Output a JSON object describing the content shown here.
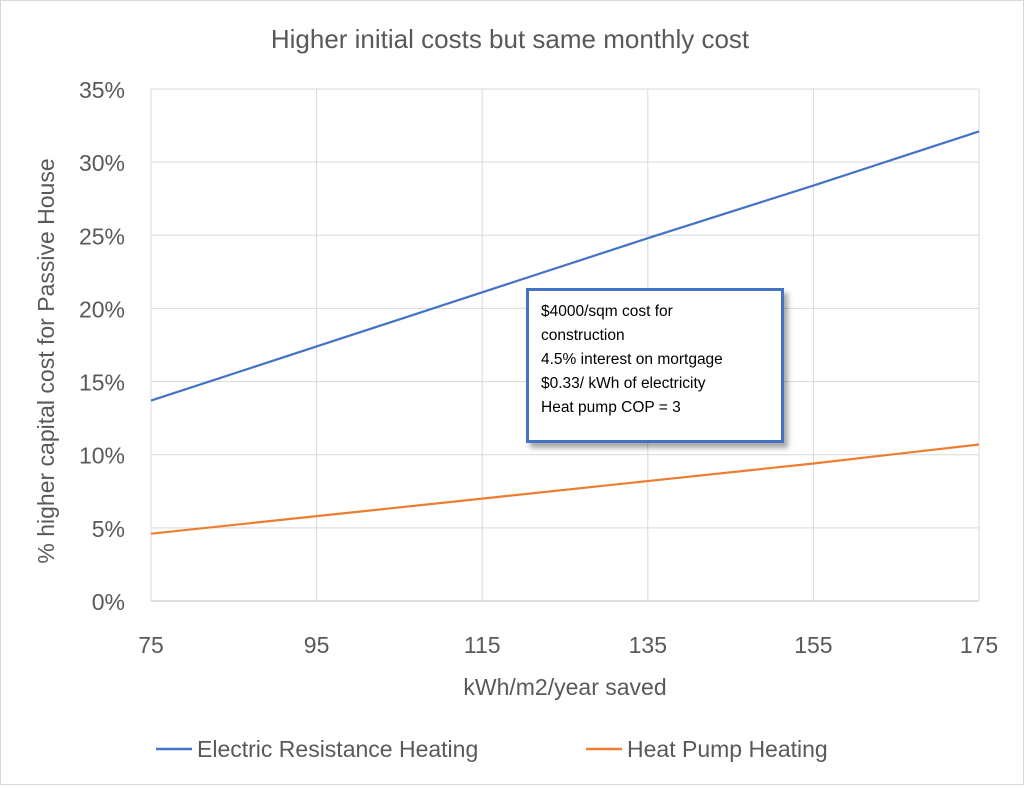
{
  "chart_data": {
    "type": "line",
    "title": "Higher initial costs but same monthly cost",
    "xlabel": "kWh/m2/year saved",
    "ylabel": "% higher capital cost for Passive House",
    "x_ticks": [
      "75",
      "95",
      "115",
      "135",
      "155",
      "175"
    ],
    "x_values": [
      75,
      95,
      115,
      135,
      155,
      175
    ],
    "y_ticks": [
      "0%",
      "5%",
      "10%",
      "15%",
      "20%",
      "25%",
      "30%",
      "35%"
    ],
    "xlim": [
      75,
      175
    ],
    "ylim": [
      0,
      35
    ],
    "grid": true,
    "legend_position": "bottom",
    "series": [
      {
        "name": "Electric Resistance Heating",
        "color": "#4472c4",
        "values": [
          13.7,
          17.4,
          21.1,
          24.8,
          28.4,
          32.1
        ]
      },
      {
        "name": "Heat Pump Heating",
        "color": "#ed7d31",
        "values": [
          4.6,
          5.8,
          7.0,
          8.2,
          9.4,
          10.7
        ]
      }
    ],
    "annotation": {
      "lines": [
        "$4000/sqm cost for",
        "construction",
        "4.5% interest on mortgage",
        "$0.33/ kWh of electricity",
        "Heat pump COP = 3"
      ],
      "border_color": "#4472c4"
    }
  }
}
